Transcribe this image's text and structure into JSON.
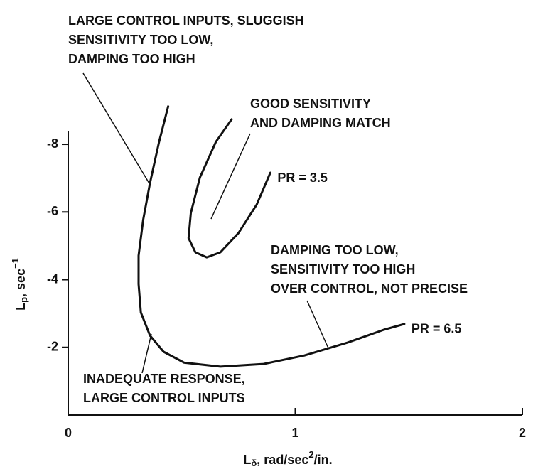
{
  "chart_data": {
    "type": "line",
    "x_label": {
      "main": "L",
      "sub": "δ",
      "rest": ", rad/sec",
      "sup": "2",
      "end": "/in."
    },
    "y_label": {
      "main": "L",
      "sub": "p",
      "rest": ", sec",
      "sup": "−1"
    },
    "xlim": [
      0,
      2
    ],
    "xticks": [
      0,
      1,
      2
    ],
    "ylim": [
      0,
      -8.4
    ],
    "yticks": [
      -2,
      -4,
      -6,
      -8
    ],
    "series": [
      {
        "name": "PR = 3.5",
        "color": "#111111",
        "x": [
          0.72,
          0.65,
          0.58,
          0.54,
          0.53,
          0.56,
          0.61,
          0.67,
          0.75,
          0.83,
          0.89
        ],
        "values": [
          -8.74,
          -8.07,
          -7.02,
          -5.97,
          -5.23,
          -4.81,
          -4.66,
          -4.81,
          -5.38,
          -6.22,
          -7.16
        ]
      },
      {
        "name": "PR = 6.5",
        "color": "#111111",
        "x": [
          0.44,
          0.4,
          0.36,
          0.33,
          0.31,
          0.31,
          0.32,
          0.36,
          0.42,
          0.51,
          0.67,
          0.86,
          1.04,
          1.23,
          1.39,
          1.48
        ],
        "values": [
          -9.12,
          -8.07,
          -6.85,
          -5.76,
          -4.71,
          -3.87,
          -3.03,
          -2.35,
          -1.87,
          -1.55,
          -1.43,
          -1.51,
          -1.76,
          -2.14,
          -2.52,
          -2.69
        ]
      }
    ],
    "annotations": [
      {
        "lines": [
          "LARGE CONTROL INPUTS, SLUGGISH",
          "SENSITIVITY TOO LOW,",
          "DAMPING TOO HIGH"
        ]
      },
      {
        "lines": [
          "GOOD SENSITIVITY",
          "AND DAMPING MATCH"
        ]
      },
      {
        "lines": [
          "DAMPING TOO LOW,",
          "SENSITIVITY TOO HIGH",
          "OVER CONTROL, NOT PRECISE"
        ]
      },
      {
        "lines": [
          "INADEQUATE RESPONSE,",
          "LARGE CONTROL INPUTS"
        ]
      }
    ]
  }
}
